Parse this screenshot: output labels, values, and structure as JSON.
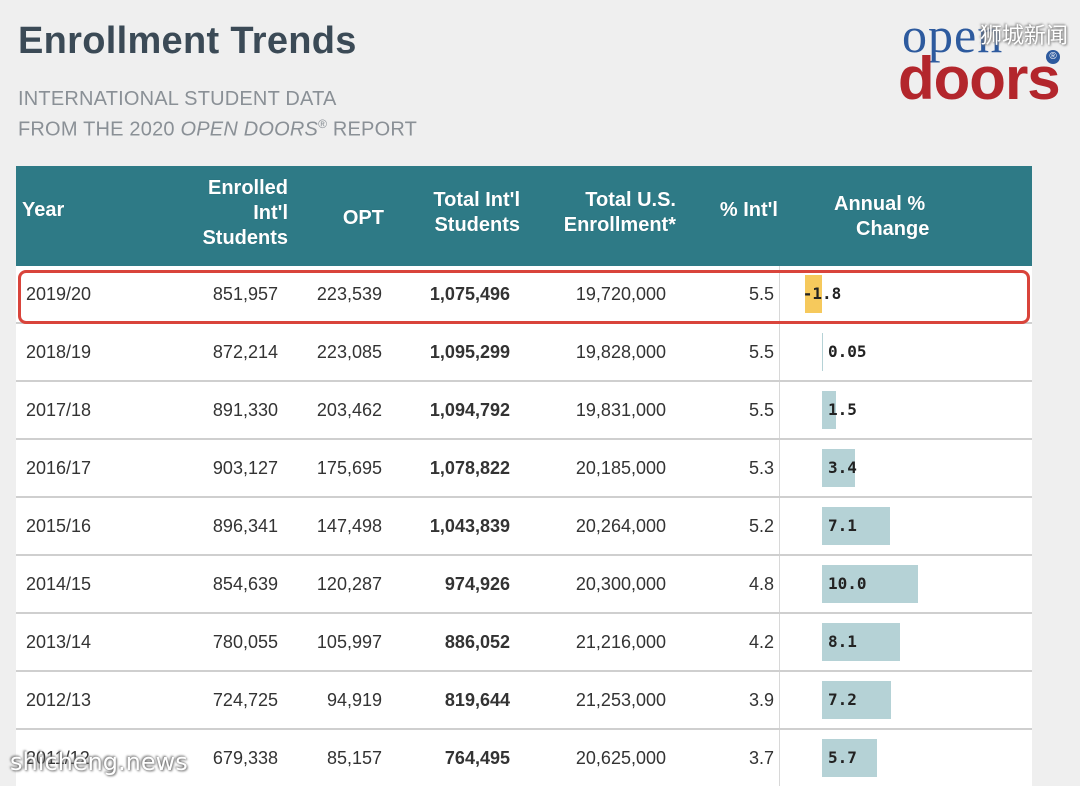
{
  "header": {
    "title": "Enrollment Trends",
    "subtitle_line1": "INTERNATIONAL STUDENT DATA",
    "subtitle_line2_prefix": "FROM THE 2020 ",
    "subtitle_line2_italic": "OPEN DOORS",
    "subtitle_line2_reg": "®",
    "subtitle_line2_suffix": " REPORT"
  },
  "logo": {
    "top": "open",
    "reg": "®",
    "bottom": "doors"
  },
  "watermarks": {
    "top": "狮城新闻",
    "bottom": "shicheng.news"
  },
  "colors": {
    "header": "#2e7a86",
    "bar_positive": "#b5d2d6",
    "bar_negative": "#f6c95c",
    "highlight": "#d9443b"
  },
  "chart_data": {
    "type": "table",
    "columns": [
      "Year",
      "Enrolled Int'l Students",
      "OPT",
      "Total Int'l Students",
      "Total U.S. Enrollment*",
      "% Int'l",
      "Annual % Change"
    ],
    "header_lines": {
      "year": [
        "Year"
      ],
      "enrolled": [
        "Enrolled",
        "Int'l",
        "Students"
      ],
      "opt": [
        "OPT"
      ],
      "total_intl": [
        "Total Int'l",
        "Students"
      ],
      "total_us": [
        "Total U.S.",
        "Enrollment*"
      ],
      "pct_intl": [
        "% Int'l"
      ],
      "annual_change": [
        "Annual %",
        "Change"
      ]
    },
    "rows": [
      {
        "year": "2019/20",
        "enrolled": "851,957",
        "opt": "223,539",
        "total_intl": "1,075,496",
        "total_us": "19,720,000",
        "pct_intl": "5.5",
        "change": "-1.8",
        "change_value": -1.8
      },
      {
        "year": "2018/19",
        "enrolled": "872,214",
        "opt": "223,085",
        "total_intl": "1,095,299",
        "total_us": "19,828,000",
        "pct_intl": "5.5",
        "change": "0.05",
        "change_value": 0.05
      },
      {
        "year": "2017/18",
        "enrolled": "891,330",
        "opt": "203,462",
        "total_intl": "1,094,792",
        "total_us": "19,831,000",
        "pct_intl": "5.5",
        "change": "1.5",
        "change_value": 1.5
      },
      {
        "year": "2016/17",
        "enrolled": "903,127",
        "opt": "175,695",
        "total_intl": "1,078,822",
        "total_us": "20,185,000",
        "pct_intl": "5.3",
        "change": "3.4",
        "change_value": 3.4
      },
      {
        "year": "2015/16",
        "enrolled": "896,341",
        "opt": "147,498",
        "total_intl": "1,043,839",
        "total_us": "20,264,000",
        "pct_intl": "5.2",
        "change": "7.1",
        "change_value": 7.1
      },
      {
        "year": "2014/15",
        "enrolled": "854,639",
        "opt": "120,287",
        "total_intl": "974,926",
        "total_us": "20,300,000",
        "pct_intl": "4.8",
        "change": "10.0",
        "change_value": 10.0
      },
      {
        "year": "2013/14",
        "enrolled": "780,055",
        "opt": "105,997",
        "total_intl": "886,052",
        "total_us": "21,216,000",
        "pct_intl": "4.2",
        "change": "8.1",
        "change_value": 8.1
      },
      {
        "year": "2012/13",
        "enrolled": "724,725",
        "opt": "94,919",
        "total_intl": "819,644",
        "total_us": "21,253,000",
        "pct_intl": "3.9",
        "change": "7.2",
        "change_value": 7.2
      },
      {
        "year": "2011/12",
        "enrolled": "679,338",
        "opt": "85,157",
        "total_intl": "764,495",
        "total_us": "20,625,000",
        "pct_intl": "3.7",
        "change": "5.7",
        "change_value": 5.7
      }
    ],
    "highlighted_row": "2019/20"
  }
}
